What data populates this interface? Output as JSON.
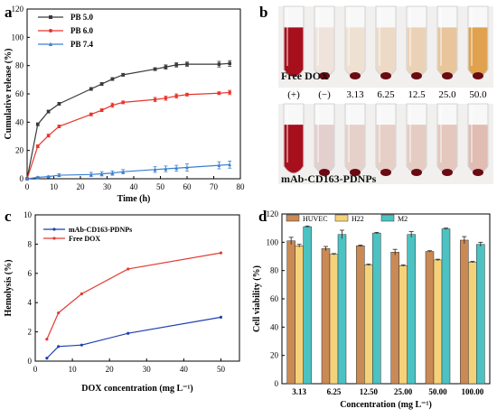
{
  "panels": {
    "a": {
      "letter": "a"
    },
    "b": {
      "letter": "b",
      "free_label": "Free DOX",
      "mab_label": "mAb-CD163-PDNPs",
      "concentrations": [
        "(+)",
        "(−)",
        "3.13",
        "6.25",
        "12.5",
        "25.0",
        "50.0"
      ]
    },
    "c": {
      "letter": "c"
    },
    "d": {
      "letter": "d"
    }
  },
  "colors": {
    "pb50": "#3a3a3a",
    "pb60": "#e8342a",
    "pb74": "#3b7fd0",
    "mab": "#1f3fb0",
    "freedox": "#e33b33",
    "huvec": "#c98a55",
    "h22": "#f5d27a",
    "m2": "#4cc2c2"
  },
  "chart_data": [
    {
      "id": "a",
      "type": "line",
      "xlabel": "Time (h)",
      "ylabel": "Cumulative release (%)",
      "xlim": [
        0,
        80
      ],
      "ylim": [
        0,
        120
      ],
      "xticks": [
        0,
        10,
        20,
        30,
        40,
        50,
        60,
        70,
        80
      ],
      "yticks": [
        0,
        20,
        40,
        60,
        80,
        100,
        120
      ],
      "legend": "top-left",
      "series": [
        {
          "name": "PB 5.0",
          "color": "#3a3a3a",
          "marker": "square",
          "x": [
            0,
            4,
            8,
            12,
            24,
            28,
            32,
            36,
            48,
            52,
            56,
            60,
            72,
            76
          ],
          "y": [
            0,
            38.5,
            47.5,
            53,
            63.5,
            67,
            70.5,
            73.5,
            77.5,
            79,
            80.5,
            81,
            81,
            81.5
          ],
          "err": [
            0,
            1,
            1,
            1,
            1,
            1,
            1,
            1,
            1,
            1.5,
            1.5,
            1.5,
            2,
            2
          ]
        },
        {
          "name": "PB 6.0",
          "color": "#e8342a",
          "marker": "circle",
          "x": [
            0,
            4,
            8,
            12,
            24,
            28,
            32,
            36,
            48,
            52,
            56,
            60,
            72,
            76
          ],
          "y": [
            0,
            23,
            30.5,
            37,
            45.5,
            48.5,
            52,
            54,
            56,
            57,
            58.5,
            59.5,
            60.5,
            61
          ],
          "err": [
            0,
            1,
            1,
            1,
            1,
            1,
            1.5,
            1,
            1.5,
            1.5,
            1.5,
            1,
            1,
            1.5
          ]
        },
        {
          "name": "PB 7.4",
          "color": "#3b7fd0",
          "marker": "triangle",
          "x": [
            0,
            4,
            8,
            12,
            24,
            28,
            32,
            36,
            48,
            52,
            56,
            60,
            72,
            76
          ],
          "y": [
            0,
            1,
            1.5,
            2.5,
            3,
            3.5,
            4,
            5,
            6.5,
            7,
            7.5,
            8,
            9.5,
            10
          ],
          "err": [
            0,
            0.5,
            0.5,
            1,
            1.5,
            1.5,
            1.5,
            1.5,
            2,
            2,
            2,
            2.5,
            2.5,
            2.5
          ]
        }
      ]
    },
    {
      "id": "c",
      "type": "line",
      "xlabel": "DOX concentration (mg L⁻¹)",
      "ylabel": "Hemolysis (%)",
      "xlim": [
        0,
        55
      ],
      "ylim": [
        0,
        10
      ],
      "xticks": [
        0,
        10,
        20,
        30,
        40,
        50
      ],
      "yticks": [
        0,
        2,
        4,
        6,
        8,
        10
      ],
      "legend": "top-left",
      "series": [
        {
          "name": "mAb-CD163-PDNPs",
          "color": "#1f3fb0",
          "x": [
            3.13,
            6.25,
            12.5,
            25,
            50
          ],
          "y": [
            0.2,
            1.0,
            1.1,
            1.9,
            3.0
          ]
        },
        {
          "name": "Free DOX",
          "color": "#e33b33",
          "x": [
            3.13,
            6.25,
            12.5,
            25,
            50
          ],
          "y": [
            1.5,
            3.3,
            4.6,
            6.3,
            7.4
          ]
        }
      ]
    },
    {
      "id": "d",
      "type": "bar",
      "xlabel": "Concentration (mg L⁻¹)",
      "ylabel": "Cell viability (%)",
      "ylim": [
        0,
        120
      ],
      "yticks": [
        0,
        20,
        40,
        60,
        80,
        100,
        120
      ],
      "categories": [
        "3.13",
        "6.25",
        "12.50",
        "25.00",
        "50.00",
        "100.00"
      ],
      "legend": "top",
      "series": [
        {
          "name": "HUVEC",
          "color": "#c98a55",
          "values": [
            101,
            95.5,
            97.5,
            93,
            93.5,
            101.5
          ],
          "err": [
            2.5,
            1.5,
            0.5,
            2,
            0.5,
            2.5
          ]
        },
        {
          "name": "H22",
          "color": "#f5d27a",
          "values": [
            97.5,
            91.5,
            84,
            83.5,
            87.5,
            86
          ],
          "err": [
            1,
            0.5,
            0.5,
            0.5,
            0.5,
            0.5
          ]
        },
        {
          "name": "M2",
          "color": "#4cc2c2",
          "values": [
            111,
            105.5,
            106.5,
            105.5,
            109.5,
            98.5
          ],
          "err": [
            0.5,
            3,
            0.5,
            2,
            0.5,
            1.5
          ]
        }
      ]
    }
  ]
}
